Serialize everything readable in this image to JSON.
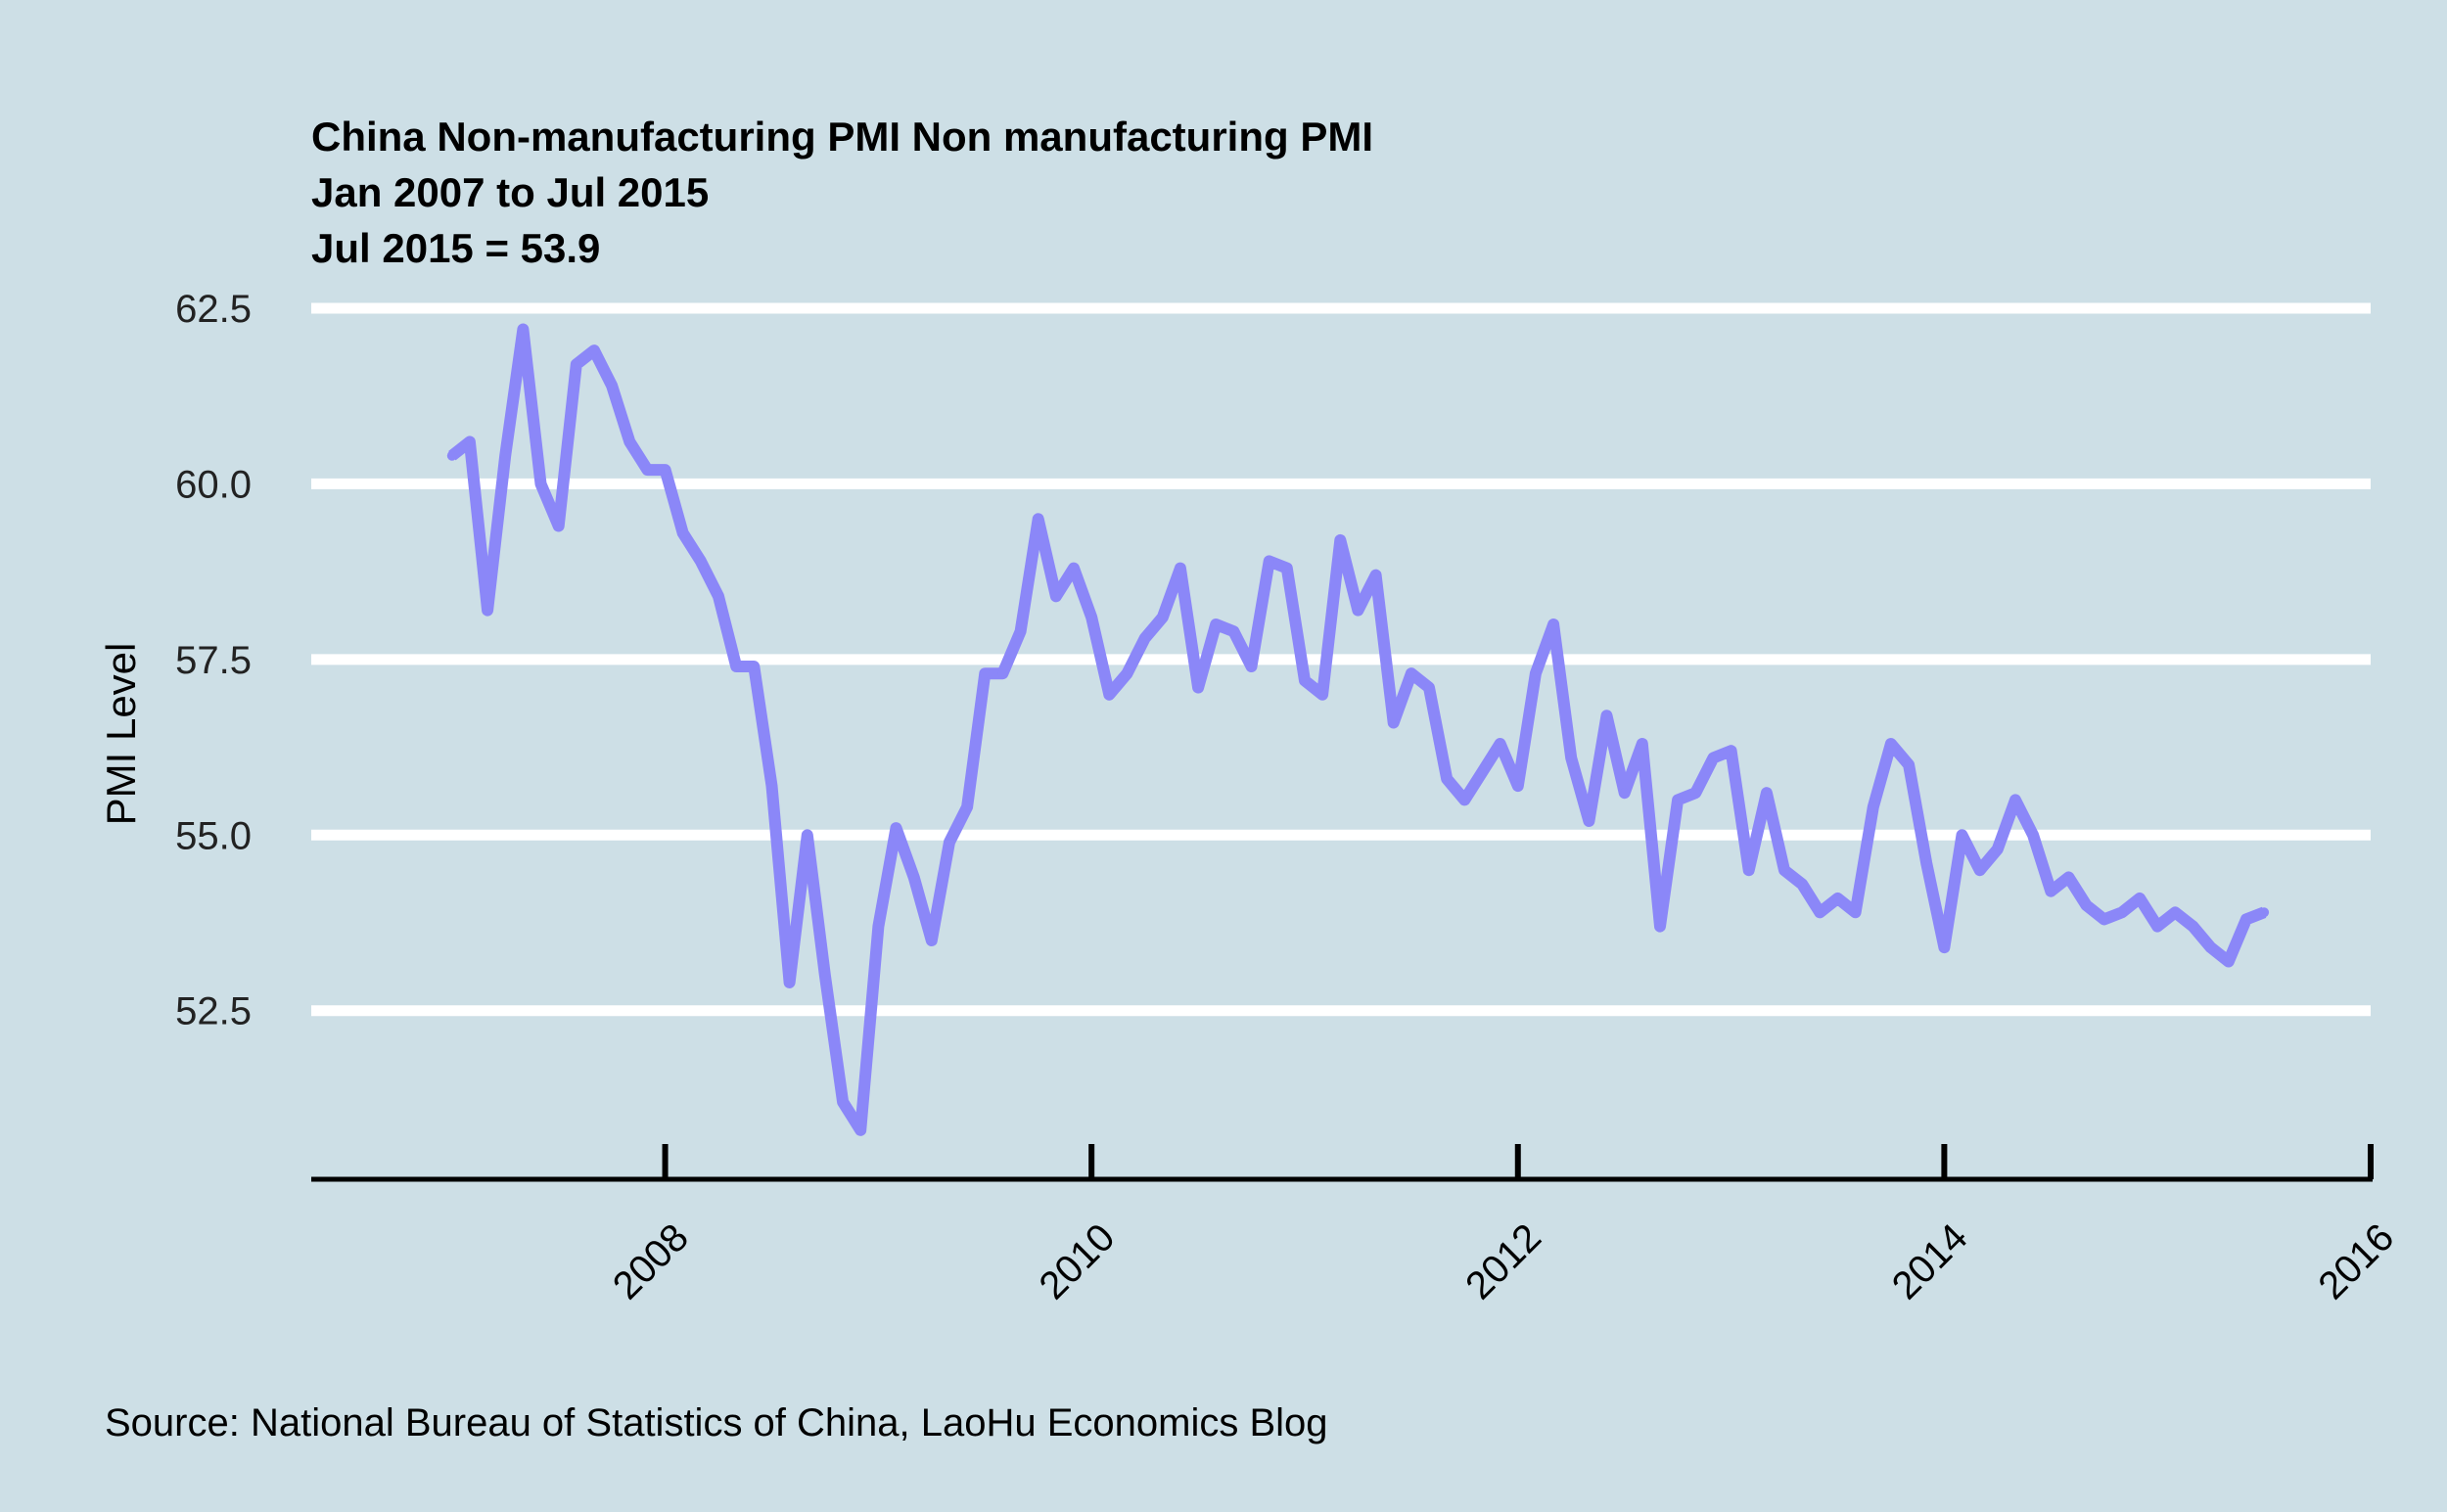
{
  "chart_data": {
    "type": "line",
    "title_lines": [
      "China Non-manufacturing PMI Non manufacturing PMI",
      "Jan 2007 to Jul 2015",
      "Jul 2015 = 53.9"
    ],
    "ylabel": "PMI Level",
    "xlabel": "",
    "source": "Source: National Bureau of Statistics of China, LaoHu Economics Blog",
    "ylim": [
      50.1,
      62.5
    ],
    "yticks": [
      52.5,
      55.0,
      57.5,
      60.0,
      62.5
    ],
    "ytick_labels": [
      "52.5",
      "55.0",
      "57.5",
      "60.0",
      "62.5"
    ],
    "xlim": [
      2006.34,
      2016.0
    ],
    "xticks": [
      2008,
      2010,
      2012,
      2014,
      2016
    ],
    "xtick_labels": [
      "2008",
      "2010",
      "2012",
      "2014",
      "2016"
    ],
    "grid": "horizontal",
    "series": [
      {
        "name": "Non manufacturing PMI",
        "color": "#8b87f8",
        "start": "2007-01",
        "values": [
          60.4,
          60.6,
          58.2,
          60.4,
          62.2,
          60.0,
          59.4,
          61.7,
          61.9,
          61.4,
          60.6,
          60.2,
          60.2,
          59.3,
          58.9,
          58.4,
          57.4,
          57.4,
          55.7,
          52.9,
          55.0,
          53.0,
          51.2,
          50.8,
          53.7,
          55.1,
          54.4,
          53.5,
          54.9,
          55.4,
          57.3,
          57.3,
          57.9,
          59.5,
          58.4,
          58.8,
          58.1,
          57.0,
          57.3,
          57.8,
          58.1,
          58.8,
          57.1,
          58.0,
          57.9,
          57.4,
          58.9,
          58.8,
          57.2,
          57.0,
          59.2,
          58.2,
          58.7,
          56.6,
          57.3,
          57.1,
          55.8,
          55.5,
          55.9,
          56.3,
          55.7,
          57.3,
          58.0,
          56.1,
          55.2,
          56.7,
          55.6,
          56.3,
          53.7,
          55.5,
          55.6,
          56.1,
          56.2,
          54.5,
          55.6,
          54.5,
          54.3,
          53.9,
          54.1,
          53.9,
          55.4,
          56.3,
          56.0,
          54.6,
          53.4,
          55.0,
          54.5,
          54.8,
          55.5,
          55.0,
          54.2,
          54.4,
          54.0,
          53.8,
          53.9,
          54.1,
          53.7,
          53.9,
          53.7,
          53.4,
          53.2,
          53.8,
          53.9
        ]
      }
    ]
  }
}
